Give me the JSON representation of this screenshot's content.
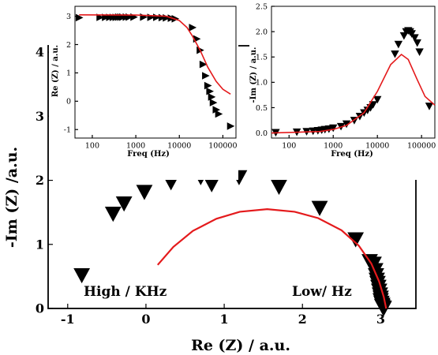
{
  "chart_data": [
    {
      "panel": "main",
      "type": "scatter",
      "xlabel": "Re (Z) / a.u.",
      "ylabel": "-Im (Z) /a.u.",
      "xlim": [
        -1.25,
        3.45
      ],
      "ylim": [
        0,
        4.1
      ],
      "xticks": [
        -1,
        0,
        1,
        2,
        3
      ],
      "yticks": [
        0,
        1,
        2,
        3,
        4
      ],
      "annotations": [
        "High / KHz",
        "Low/ Hz"
      ],
      "series": [
        {
          "marker": "down-triangle",
          "color": "#000000",
          "points": [
            [
              -0.82,
              0.52
            ],
            [
              -0.42,
              1.48
            ],
            [
              -0.28,
              1.64
            ],
            [
              -0.02,
              1.82
            ],
            [
              0.32,
              1.97
            ],
            [
              0.7,
              2.05
            ],
            [
              0.84,
              1.94
            ],
            [
              1.19,
              2.05
            ],
            [
              1.7,
              1.9
            ],
            [
              2.22,
              1.57
            ],
            [
              2.68,
              1.08
            ],
            [
              2.86,
              0.74
            ],
            [
              2.91,
              0.7
            ],
            [
              2.93,
              0.6
            ],
            [
              2.94,
              0.52
            ],
            [
              2.95,
              0.45
            ],
            [
              2.96,
              0.4
            ],
            [
              2.97,
              0.34
            ],
            [
              2.98,
              0.28
            ],
            [
              2.99,
              0.22
            ],
            [
              3.0,
              0.17
            ],
            [
              3.0,
              0.13
            ],
            [
              3.01,
              0.09
            ],
            [
              3.02,
              0.06
            ],
            [
              3.02,
              0.04
            ],
            [
              3.03,
              0.02
            ],
            [
              3.04,
              0.01
            ]
          ]
        },
        {
          "type": "line",
          "color": "#e41a1c",
          "points": [
            [
              0.15,
              0.68
            ],
            [
              0.35,
              0.96
            ],
            [
              0.6,
              1.21
            ],
            [
              0.9,
              1.4
            ],
            [
              1.2,
              1.51
            ],
            [
              1.55,
              1.55
            ],
            [
              1.9,
              1.51
            ],
            [
              2.2,
              1.41
            ],
            [
              2.5,
              1.22
            ],
            [
              2.72,
              0.98
            ],
            [
              2.88,
              0.7
            ],
            [
              2.98,
              0.42
            ],
            [
              3.04,
              0.18
            ],
            [
              3.07,
              0.0
            ]
          ]
        }
      ]
    },
    {
      "panel": "inset-left",
      "type": "scatter",
      "xlabel": "Freq (Hz)",
      "ylabel": "Re (Z) / a.u.",
      "xscale": "log",
      "xlim": [
        40,
        200000
      ],
      "ylim": [
        -1.3,
        3.35
      ],
      "xticks": [
        100,
        1000,
        10000,
        100000
      ],
      "xtick_labels": [
        "100",
        "1000",
        "10000",
        "100000"
      ],
      "yticks": [
        -1,
        0,
        1,
        2,
        3
      ],
      "series": [
        {
          "marker": "right-triangle",
          "color": "#000000",
          "points": [
            [
              50,
              2.95
            ],
            [
              150,
              2.96
            ],
            [
              200,
              2.96
            ],
            [
              250,
              2.96
            ],
            [
              300,
              2.96
            ],
            [
              350,
              2.96
            ],
            [
              400,
              2.97
            ],
            [
              450,
              2.97
            ],
            [
              500,
              2.97
            ],
            [
              600,
              2.97
            ],
            [
              700,
              2.97
            ],
            [
              900,
              2.97
            ],
            [
              1500,
              2.97
            ],
            [
              2200,
              2.96
            ],
            [
              3000,
              2.96
            ],
            [
              4000,
              2.95
            ],
            [
              5000,
              2.94
            ],
            [
              6500,
              2.93
            ],
            [
              8000,
              2.91
            ],
            [
              20000,
              2.6
            ],
            [
              25000,
              2.2
            ],
            [
              30000,
              1.8
            ],
            [
              35000,
              1.3
            ],
            [
              40000,
              0.9
            ],
            [
              45000,
              0.55
            ],
            [
              50000,
              0.35
            ],
            [
              55000,
              0.15
            ],
            [
              60000,
              -0.05
            ],
            [
              70000,
              -0.3
            ],
            [
              80000,
              -0.45
            ],
            [
              150000,
              -0.88
            ]
          ]
        },
        {
          "type": "line",
          "color": "#e41a1c",
          "points": [
            [
              50,
              3.05
            ],
            [
              1000,
              3.04
            ],
            [
              5000,
              3.0
            ],
            [
              10000,
              2.85
            ],
            [
              15000,
              2.6
            ],
            [
              20000,
              2.3
            ],
            [
              30000,
              1.8
            ],
            [
              45000,
              1.2
            ],
            [
              70000,
              0.7
            ],
            [
              100000,
              0.42
            ],
            [
              150000,
              0.25
            ]
          ]
        }
      ]
    },
    {
      "panel": "inset-right",
      "type": "scatter",
      "xlabel": "Freq (Hz)",
      "ylabel": "-Im (Z) / a.u.",
      "xscale": "log",
      "xlim": [
        40,
        200000
      ],
      "ylim": [
        -0.1,
        2.5
      ],
      "xticks": [
        100,
        1000,
        10000,
        100000
      ],
      "xtick_labels": [
        "100",
        "1000",
        "10000",
        "100000"
      ],
      "yticks": [
        0.0,
        0.5,
        1.0,
        1.5,
        2.0,
        2.5
      ],
      "ytick_labels": [
        "0.0",
        "0.5",
        "1.0",
        "1.5",
        "2.0",
        "2.5"
      ],
      "series": [
        {
          "marker": "down-triangle",
          "color": "#000000",
          "points": [
            [
              50,
              0.01
            ],
            [
              150,
              0.02
            ],
            [
              250,
              0.03
            ],
            [
              350,
              0.04
            ],
            [
              450,
              0.05
            ],
            [
              550,
              0.06
            ],
            [
              650,
              0.07
            ],
            [
              800,
              0.08
            ],
            [
              1000,
              0.1
            ],
            [
              1500,
              0.13
            ],
            [
              2000,
              0.18
            ],
            [
              3000,
              0.25
            ],
            [
              4000,
              0.33
            ],
            [
              5000,
              0.4
            ],
            [
              6000,
              0.45
            ],
            [
              7000,
              0.5
            ],
            [
              8000,
              0.56
            ],
            [
              10000,
              0.66
            ],
            [
              25000,
              1.56
            ],
            [
              30000,
              1.75
            ],
            [
              40000,
              1.92
            ],
            [
              45000,
              2.0
            ],
            [
              50000,
              2.02
            ],
            [
              55000,
              2.0
            ],
            [
              60000,
              1.96
            ],
            [
              70000,
              1.88
            ],
            [
              80000,
              1.78
            ],
            [
              90000,
              1.6
            ],
            [
              150000,
              0.53
            ]
          ]
        },
        {
          "type": "line",
          "color": "#e41a1c",
          "points": [
            [
              40,
              0.0
            ],
            [
              500,
              0.03
            ],
            [
              1000,
              0.07
            ],
            [
              2000,
              0.15
            ],
            [
              5000,
              0.4
            ],
            [
              10000,
              0.82
            ],
            [
              20000,
              1.35
            ],
            [
              35000,
              1.55
            ],
            [
              50000,
              1.45
            ],
            [
              80000,
              1.05
            ],
            [
              120000,
              0.72
            ],
            [
              200000,
              0.55
            ]
          ]
        }
      ]
    }
  ]
}
